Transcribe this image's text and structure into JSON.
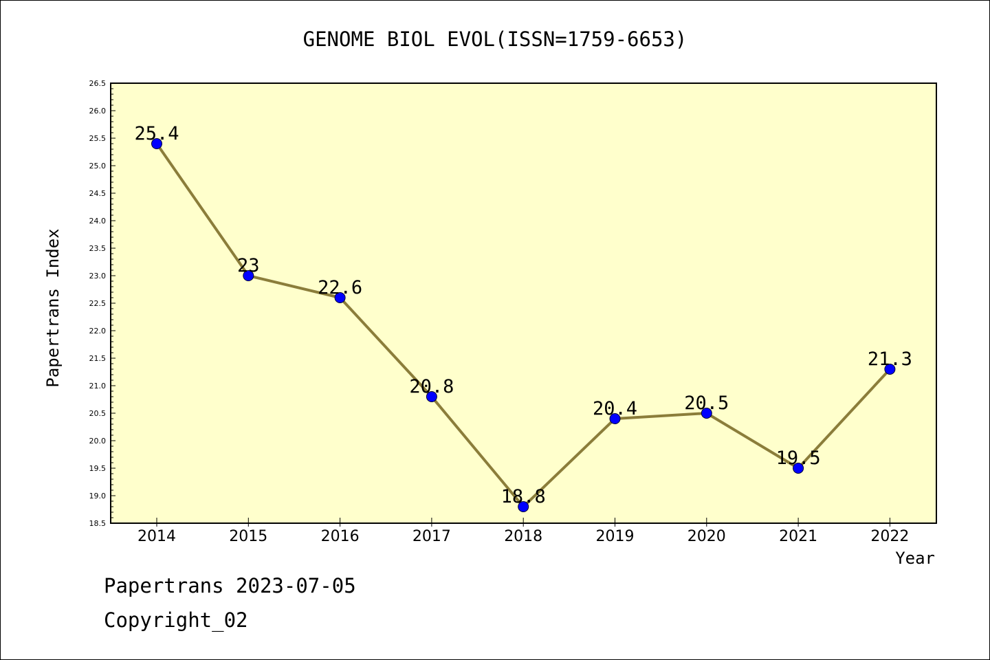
{
  "colors": {
    "plot_background": "#ffffcc",
    "line": "#8b7d3a",
    "marker": "#0000ff",
    "axis": "#000000"
  },
  "chart_data": {
    "type": "line",
    "title": "GENOME BIOL EVOL(ISSN=1759-6653)",
    "xlabel": "Year",
    "ylabel": "Papertrans Index",
    "categories": [
      "2014",
      "2015",
      "2016",
      "2017",
      "2018",
      "2019",
      "2020",
      "2021",
      "2022"
    ],
    "values": [
      25.4,
      23,
      22.6,
      20.8,
      18.8,
      20.4,
      20.5,
      19.5,
      21.3
    ],
    "data_labels": [
      "25.4",
      "23",
      "22.6",
      "20.8",
      "18.8",
      "20.4",
      "20.5",
      "19.5",
      "21.3"
    ],
    "ylim": [
      18.5,
      26.5
    ],
    "yticks": [
      "18.5",
      "19.0",
      "19.5",
      "20.0",
      "20.5",
      "21.0",
      "21.5",
      "22.0",
      "22.5",
      "23.0",
      "23.5",
      "24.0",
      "24.5",
      "25.0",
      "25.5",
      "26.0",
      "26.5"
    ],
    "grid": false,
    "legend": "none",
    "marker": "circle"
  },
  "footer": {
    "line1": "Papertrans 2023-07-05",
    "line2": "Copyright_02"
  }
}
